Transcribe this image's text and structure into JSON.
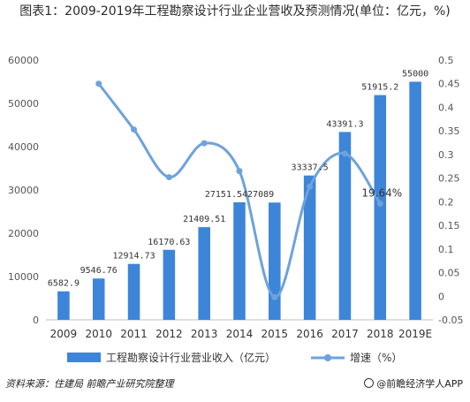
{
  "title": "图表1：2009-2019年工程勘察设计行业企业营收及预测情况(单位：亿元，%)",
  "footer": {
    "source": "资料来源：住建局 前瞻产业研究院整理",
    "brand": "@前瞻经济学人APP"
  },
  "chart_data": {
    "type": "bar",
    "categories": [
      "2009",
      "2010",
      "2011",
      "2012",
      "2013",
      "2014",
      "2015",
      "2016",
      "2017",
      "2018",
      "2019E"
    ],
    "series": [
      {
        "name": "工程勘察设计行业营业收入（亿元）",
        "type": "bar",
        "axis": "left",
        "color": "#3d85d9",
        "values": [
          6582.9,
          9546.76,
          12914.73,
          16170.63,
          21409.51,
          27151.54,
          27089,
          33337.5,
          43391.3,
          51915.2,
          55000
        ],
        "labels": [
          "6582.9",
          "9546.76",
          "12914.73",
          "16170.63",
          "21409.51",
          "27151.5427089",
          "",
          "33337.5",
          "43391.3",
          "51915.2",
          "55000"
        ]
      },
      {
        "name": "增速（%）",
        "type": "line",
        "axis": "right",
        "color": "#6ea2dc",
        "values": [
          null,
          0.45,
          0.353,
          0.252,
          0.324,
          0.265,
          -0.002,
          0.232,
          0.302,
          0.196,
          null
        ],
        "labels": [
          "",
          "",
          "",
          "",
          "",
          "",
          "",
          "",
          "",
          "19.64%",
          ""
        ]
      }
    ],
    "y_left": {
      "min": 0,
      "max": 60000,
      "ticks": [
        "0",
        "10000",
        "20000",
        "30000",
        "40000",
        "50000",
        "60000"
      ]
    },
    "y_right": {
      "min": -0.05,
      "max": 0.5,
      "ticks": [
        "-0.05",
        "0",
        "0.05",
        "0.1",
        "0.15",
        "0.2",
        "0.25",
        "0.3",
        "0.35",
        "0.4",
        "0.45",
        "0.5"
      ]
    },
    "legend_position": "bottom",
    "grid": false
  }
}
